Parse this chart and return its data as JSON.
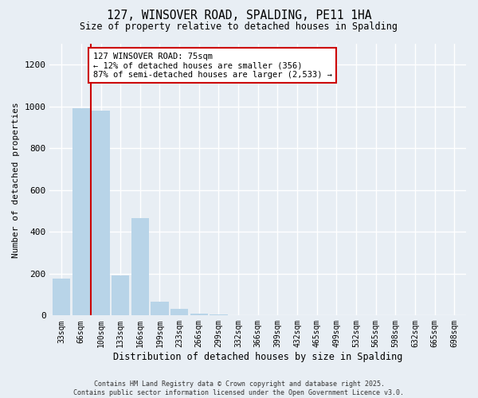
{
  "title_line1": "127, WINSOVER ROAD, SPALDING, PE11 1HA",
  "title_line2": "Size of property relative to detached houses in Spalding",
  "xlabel": "Distribution of detached houses by size in Spalding",
  "ylabel": "Number of detached properties",
  "categories": [
    "33sqm",
    "66sqm",
    "100sqm",
    "133sqm",
    "166sqm",
    "199sqm",
    "233sqm",
    "266sqm",
    "299sqm",
    "332sqm",
    "366sqm",
    "399sqm",
    "432sqm",
    "465sqm",
    "499sqm",
    "532sqm",
    "565sqm",
    "598sqm",
    "632sqm",
    "665sqm",
    "698sqm"
  ],
  "values": [
    175,
    990,
    980,
    190,
    465,
    65,
    30,
    10,
    5,
    2,
    2,
    1,
    1,
    1,
    1,
    0,
    0,
    0,
    0,
    0,
    0
  ],
  "bar_color": "#b8d4e8",
  "subject_bar_color": "#cc0000",
  "ylim": [
    0,
    1300
  ],
  "yticks": [
    0,
    200,
    400,
    600,
    800,
    1000,
    1200
  ],
  "annotation_title": "127 WINSOVER ROAD: 75sqm",
  "annotation_line1": "← 12% of detached houses are smaller (356)",
  "annotation_line2": "87% of semi-detached houses are larger (2,533) →",
  "annotation_box_color": "#ffffff",
  "annotation_border_color": "#cc0000",
  "footer_line1": "Contains HM Land Registry data © Crown copyright and database right 2025.",
  "footer_line2": "Contains public sector information licensed under the Open Government Licence v3.0.",
  "background_color": "#e8eef4",
  "grid_color": "#ffffff"
}
